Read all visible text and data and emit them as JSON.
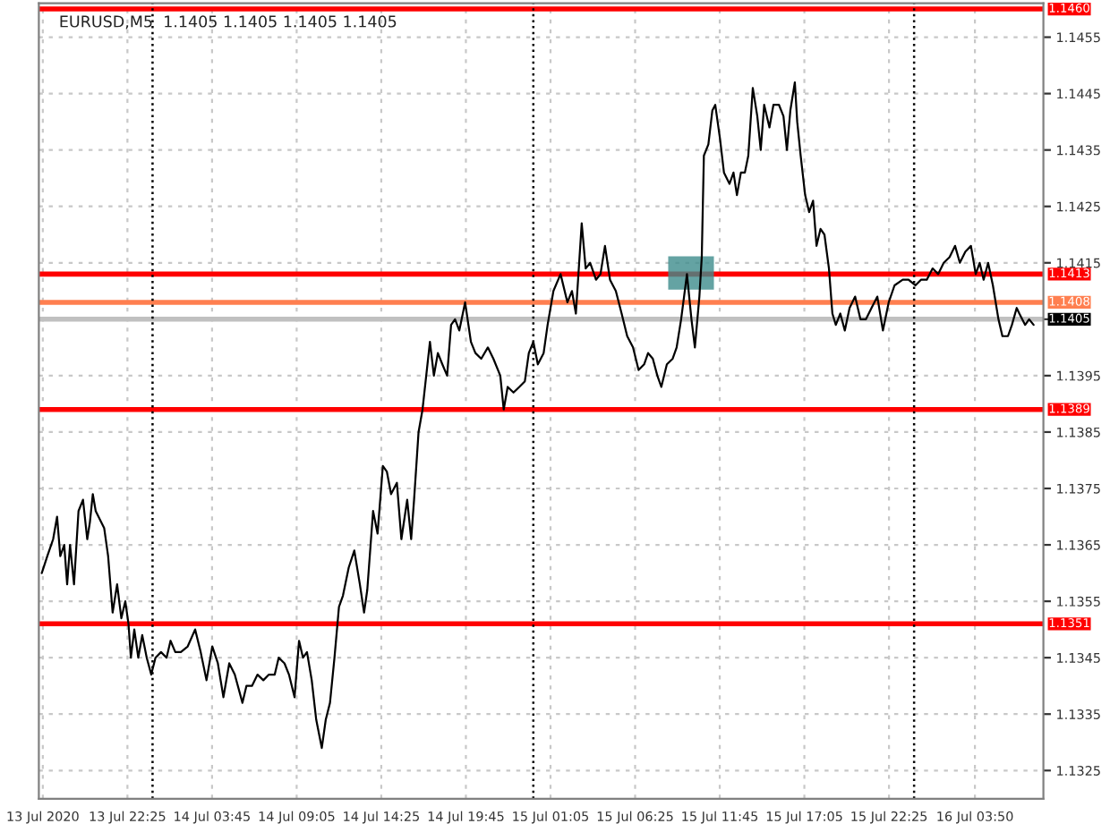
{
  "chart_data": {
    "type": "line",
    "title": "EURUSD,M5  1.1405 1.1405 1.1405 1.1405",
    "xlim": [
      "2020-07-13T16:50",
      "2020-07-16T08:09"
    ],
    "xticks": [
      {
        "value": "2020-07-13T17:05",
        "label": "13 Jul 2020"
      },
      {
        "value": "2020-07-13T22:25",
        "label": "13 Jul 22:25"
      },
      {
        "value": "2020-07-14T03:45",
        "label": "14 Jul 03:45"
      },
      {
        "value": "2020-07-14T09:05",
        "label": "14 Jul 09:05"
      },
      {
        "value": "2020-07-14T14:25",
        "label": "14 Jul 14:25"
      },
      {
        "value": "2020-07-14T19:45",
        "label": "14 Jul 19:45"
      },
      {
        "value": "2020-07-15T01:05",
        "label": "15 Jul 01:05"
      },
      {
        "value": "2020-07-15T06:25",
        "label": "15 Jul 06:25"
      },
      {
        "value": "2020-07-15T11:45",
        "label": "15 Jul 11:45"
      },
      {
        "value": "2020-07-15T17:05",
        "label": "15 Jul 17:05"
      },
      {
        "value": "2020-07-15T22:25",
        "label": "15 Jul 22:25"
      },
      {
        "value": "2020-07-16T03:50",
        "label": "16 Jul 03:50"
      }
    ],
    "ylim": [
      1.132,
      1.1461
    ],
    "yticks": [
      {
        "value": 1.1325,
        "label": "1.1325"
      },
      {
        "value": 1.1335,
        "label": "1.1335"
      },
      {
        "value": 1.1345,
        "label": "1.1345"
      },
      {
        "value": 1.1355,
        "label": "1.1355"
      },
      {
        "value": 1.1365,
        "label": "1.1365"
      },
      {
        "value": 1.1375,
        "label": "1.1375"
      },
      {
        "value": 1.1385,
        "label": "1.1385"
      },
      {
        "value": 1.1395,
        "label": "1.1395"
      },
      {
        "value": 1.1405,
        "label": null
      },
      {
        "value": 1.1415,
        "label": "1.1415"
      },
      {
        "value": 1.1425,
        "label": "1.1425"
      },
      {
        "value": 1.1435,
        "label": "1.1435"
      },
      {
        "value": 1.1445,
        "label": "1.1445"
      },
      {
        "value": 1.1455,
        "label": "1.1455"
      }
    ],
    "grid": true,
    "marker": "none",
    "line_style": "solid",
    "ref_lines": [
      {
        "axis": "y",
        "value": 1.146,
        "label": "1.1460",
        "color": "#ff0000"
      },
      {
        "axis": "y",
        "value": 1.1413,
        "label": "1.1413",
        "color": "#ff0000"
      },
      {
        "axis": "y",
        "value": 1.1408,
        "label": "1.1408",
        "color": "#ff7f50"
      },
      {
        "axis": "y",
        "value": 1.1405,
        "label": "1.1405",
        "color": "#c0c0c0"
      },
      {
        "axis": "y",
        "value": 1.1389,
        "label": "1.1389",
        "color": "#ff0000"
      },
      {
        "axis": "y",
        "value": 1.1351,
        "label": "1.1351",
        "color": "#ff0000"
      },
      {
        "axis": "x",
        "value": "2020-07-14",
        "label": null,
        "color": "#000000",
        "line_style": "dotted"
      },
      {
        "axis": "x",
        "value": "2020-07-15",
        "label": null,
        "color": "#000000",
        "line_style": "dotted"
      },
      {
        "axis": "x",
        "value": "2020-07-16",
        "label": null,
        "color": "#000000",
        "line_style": "dotted"
      }
    ],
    "series": [
      {
        "color": "#000000",
        "x": [
          "2020-07-13T17:01",
          "2020-07-13T17:22",
          "2020-07-13T17:44",
          "2020-07-13T17:59",
          "2020-07-13T18:11",
          "2020-07-13T18:26",
          "2020-07-13T18:37",
          "2020-07-13T18:48",
          "2020-07-13T19:03",
          "2020-07-13T19:20",
          "2020-07-13T19:37",
          "2020-07-13T19:53",
          "2020-07-13T20:03",
          "2020-07-13T20:14",
          "2020-07-13T20:25",
          "2020-07-13T20:46",
          "2020-07-13T20:57",
          "2020-07-13T21:12",
          "2020-07-13T21:29",
          "2020-07-13T21:46",
          "2020-07-13T22:02",
          "2020-07-13T22:17",
          "2020-07-13T22:29",
          "2020-07-13T22:38",
          "2020-07-13T22:51",
          "2020-07-13T23:06",
          "2020-07-13T23:21",
          "2020-07-13T23:38",
          "2020-07-13T23:55",
          "2020-07-14T00:11",
          "2020-07-14T00:32",
          "2020-07-14T00:53",
          "2020-07-14T01:08",
          "2020-07-14T01:26",
          "2020-07-14T01:47",
          "2020-07-14T02:13",
          "2020-07-14T02:41",
          "2020-07-14T03:02",
          "2020-07-14T03:24",
          "2020-07-14T03:46",
          "2020-07-14T04:07",
          "2020-07-14T04:28",
          "2020-07-14T04:50",
          "2020-07-14T05:11",
          "2020-07-14T05:40",
          "2020-07-14T05:55",
          "2020-07-14T06:16",
          "2020-07-14T06:37",
          "2020-07-14T06:59",
          "2020-07-14T07:20",
          "2020-07-14T07:42",
          "2020-07-14T07:57",
          "2020-07-14T08:19",
          "2020-07-14T08:36",
          "2020-07-14T08:57",
          "2020-07-14T09:14",
          "2020-07-14T09:29",
          "2020-07-14T09:44",
          "2020-07-14T10:02",
          "2020-07-14T10:19",
          "2020-07-14T10:40",
          "2020-07-14T10:55",
          "2020-07-14T11:11",
          "2020-07-14T11:28",
          "2020-07-14T11:45",
          "2020-07-14T12:00",
          "2020-07-14T12:22",
          "2020-07-14T12:43",
          "2020-07-14T13:04",
          "2020-07-14T13:20",
          "2020-07-14T13:32",
          "2020-07-14T13:54",
          "2020-07-14T14:11",
          "2020-07-14T14:31",
          "2020-07-14T14:46",
          "2020-07-14T15:02",
          "2020-07-14T15:24",
          "2020-07-14T15:41",
          "2020-07-14T16:03",
          "2020-07-14T16:18",
          "2020-07-14T16:29",
          "2020-07-14T16:46",
          "2020-07-14T17:01",
          "2020-07-14T17:29",
          "2020-07-14T17:44",
          "2020-07-14T17:59",
          "2020-07-14T18:16",
          "2020-07-14T18:34",
          "2020-07-14T18:49",
          "2020-07-14T19:04",
          "2020-07-14T19:20",
          "2020-07-14T19:42",
          "2020-07-14T20:04",
          "2020-07-14T20:21",
          "2020-07-14T20:43",
          "2020-07-14T21:08",
          "2020-07-14T21:29",
          "2020-07-14T21:55",
          "2020-07-14T22:08",
          "2020-07-14T22:23",
          "2020-07-14T22:45",
          "2020-07-14T23:07",
          "2020-07-14T23:28",
          "2020-07-14T23:43",
          "2020-07-15T00:00",
          "2020-07-15T00:17",
          "2020-07-15T00:39",
          "2020-07-15T00:54",
          "2020-07-15T01:16",
          "2020-07-15T01:43",
          "2020-07-15T02:09",
          "2020-07-15T02:26",
          "2020-07-15T02:41",
          "2020-07-15T03:03",
          "2020-07-15T03:18",
          "2020-07-15T03:35",
          "2020-07-15T03:57",
          "2020-07-15T04:14",
          "2020-07-15T04:31",
          "2020-07-15T04:50",
          "2020-07-15T05:12",
          "2020-07-15T05:34",
          "2020-07-15T05:55",
          "2020-07-15T06:17",
          "2020-07-15T06:38",
          "2020-07-15T06:59",
          "2020-07-15T07:14",
          "2020-07-15T07:32",
          "2020-07-15T07:49",
          "2020-07-15T08:04",
          "2020-07-15T08:25",
          "2020-07-15T08:47",
          "2020-07-15T09:02",
          "2020-07-15T09:19",
          "2020-07-15T09:41",
          "2020-07-15T09:58",
          "2020-07-15T10:11",
          "2020-07-15T10:28",
          "2020-07-15T10:37",
          "2020-07-15T10:45",
          "2020-07-15T11:02",
          "2020-07-15T11:17",
          "2020-07-15T11:28",
          "2020-07-15T11:46",
          "2020-07-15T12:01",
          "2020-07-15T12:22",
          "2020-07-15T12:37",
          "2020-07-15T12:50",
          "2020-07-15T13:05",
          "2020-07-15T13:20",
          "2020-07-15T13:33",
          "2020-07-15T13:50",
          "2020-07-15T14:07",
          "2020-07-15T14:20",
          "2020-07-15T14:33",
          "2020-07-15T14:53",
          "2020-07-15T15:08",
          "2020-07-15T15:29",
          "2020-07-15T15:46",
          "2020-07-15T15:59",
          "2020-07-15T16:12",
          "2020-07-15T16:29",
          "2020-07-15T16:38",
          "2020-07-15T16:51",
          "2020-07-15T17:08",
          "2020-07-15T17:23",
          "2020-07-15T17:38",
          "2020-07-15T17:51",
          "2020-07-15T18:06",
          "2020-07-15T18:21",
          "2020-07-15T18:38",
          "2020-07-15T18:51",
          "2020-07-15T19:04",
          "2020-07-15T19:21",
          "2020-07-15T19:38",
          "2020-07-15T19:56",
          "2020-07-15T20:17",
          "2020-07-15T20:37",
          "2020-07-15T20:58",
          "2020-07-15T21:19",
          "2020-07-15T21:41",
          "2020-07-15T22:02",
          "2020-07-15T22:24",
          "2020-07-15T22:46",
          "2020-07-15T23:17",
          "2020-07-15T23:39",
          "2020-07-16T00:05",
          "2020-07-16T00:26",
          "2020-07-16T00:48",
          "2020-07-16T01:10",
          "2020-07-16T01:31",
          "2020-07-16T01:52",
          "2020-07-16T02:14",
          "2020-07-16T02:35",
          "2020-07-16T02:53",
          "2020-07-16T03:14",
          "2020-07-16T03:35",
          "2020-07-16T03:53",
          "2020-07-16T04:08",
          "2020-07-16T04:23",
          "2020-07-16T04:40",
          "2020-07-16T04:58",
          "2020-07-16T05:19",
          "2020-07-16T05:34",
          "2020-07-16T05:55",
          "2020-07-16T06:10",
          "2020-07-16T06:28",
          "2020-07-16T06:38",
          "2020-07-16T07:00",
          "2020-07-16T07:15",
          "2020-07-16T07:32"
        ],
        "values": [
          1.136,
          1.1363,
          1.1366,
          1.137,
          1.1363,
          1.1365,
          1.1358,
          1.1365,
          1.1358,
          1.1371,
          1.1373,
          1.1366,
          1.1369,
          1.1374,
          1.1371,
          1.1369,
          1.1368,
          1.1363,
          1.1353,
          1.1358,
          1.1352,
          1.1355,
          1.1351,
          1.1345,
          1.135,
          1.1345,
          1.1349,
          1.1345,
          1.1342,
          1.1345,
          1.1346,
          1.1345,
          1.1348,
          1.1346,
          1.1346,
          1.1347,
          1.135,
          1.1346,
          1.1341,
          1.1347,
          1.1344,
          1.1338,
          1.1344,
          1.1342,
          1.1337,
          1.134,
          1.134,
          1.1342,
          1.1341,
          1.1342,
          1.1342,
          1.1345,
          1.1344,
          1.1342,
          1.1338,
          1.1348,
          1.1345,
          1.1346,
          1.1341,
          1.1334,
          1.1329,
          1.1334,
          1.1337,
          1.1345,
          1.1354,
          1.1356,
          1.1361,
          1.1364,
          1.1358,
          1.1353,
          1.1357,
          1.1371,
          1.1367,
          1.1379,
          1.1378,
          1.1374,
          1.1376,
          1.1366,
          1.1373,
          1.1366,
          1.1373,
          1.1385,
          1.1389,
          1.1401,
          1.1395,
          1.1399,
          1.1397,
          1.1395,
          1.1404,
          1.1405,
          1.1403,
          1.1408,
          1.1401,
          1.1399,
          1.1398,
          1.14,
          1.1398,
          1.1395,
          1.1389,
          1.1393,
          1.1392,
          1.1393,
          1.1394,
          1.1399,
          1.1401,
          1.1397,
          1.1399,
          1.1404,
          1.141,
          1.1413,
          1.1408,
          1.141,
          1.1406,
          1.1422,
          1.1414,
          1.1415,
          1.1412,
          1.1413,
          1.1418,
          1.1412,
          1.141,
          1.1406,
          1.1402,
          1.14,
          1.1396,
          1.1397,
          1.1399,
          1.1398,
          1.1395,
          1.1393,
          1.1397,
          1.1398,
          1.14,
          1.1405,
          1.1413,
          1.1405,
          1.14,
          1.1409,
          1.1416,
          1.1434,
          1.1436,
          1.1442,
          1.1443,
          1.1437,
          1.1431,
          1.1429,
          1.1431,
          1.1427,
          1.1431,
          1.1431,
          1.1434,
          1.1446,
          1.1441,
          1.1435,
          1.1443,
          1.1439,
          1.1443,
          1.1443,
          1.1441,
          1.1435,
          1.1442,
          1.1447,
          1.144,
          1.1434,
          1.1427,
          1.1424,
          1.1426,
          1.1418,
          1.1421,
          1.142,
          1.1414,
          1.1406,
          1.1404,
          1.1406,
          1.1403,
          1.1407,
          1.1409,
          1.1405,
          1.1405,
          1.1407,
          1.1409,
          1.1403,
          1.1408,
          1.1411,
          1.1412,
          1.1412,
          1.1411,
          1.1412,
          1.1412,
          1.1414,
          1.1413,
          1.1415,
          1.1416,
          1.1418,
          1.1415,
          1.1417,
          1.1418,
          1.1413,
          1.1415,
          1.1412,
          1.1415,
          1.1411,
          1.1405,
          1.1402,
          1.1402,
          1.1404,
          1.1407,
          1.1406,
          1.1404,
          1.1405,
          1.1404
        ]
      }
    ]
  }
}
